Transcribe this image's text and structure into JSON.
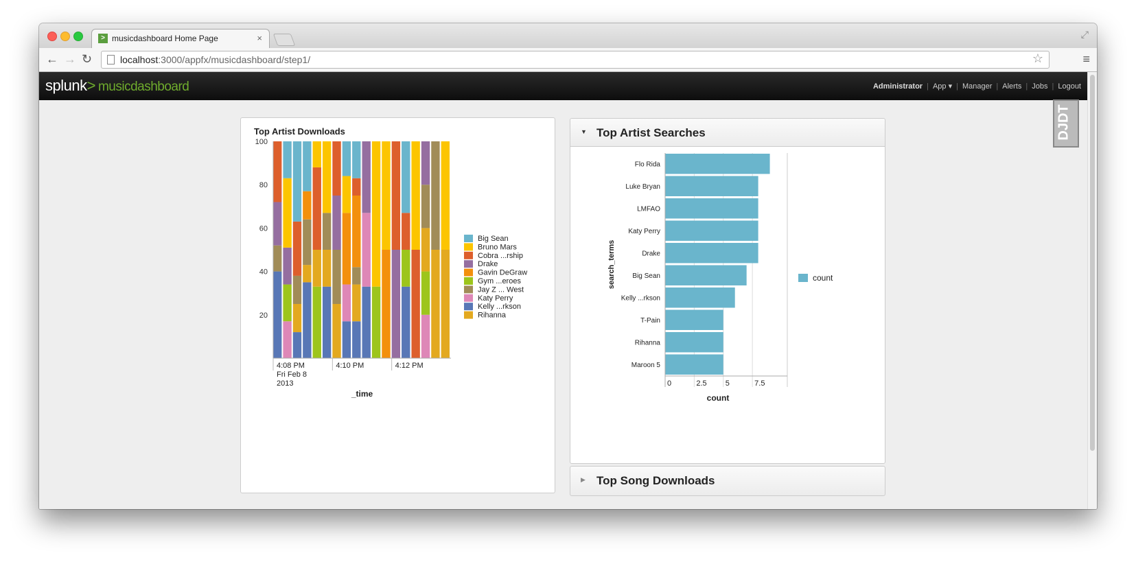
{
  "browser": {
    "tab_title": "musicdashboard Home Page",
    "tab_favicon": ">",
    "tab_close": "×",
    "url_host": "localhost",
    "url_path": ":3000/appfx/musicdashboard/step1/"
  },
  "header": {
    "logo": "splunk",
    "logo_gt": ">",
    "app_name": "musicdashboard",
    "nav": {
      "admin": "Administrator",
      "app": "App ▾",
      "manager": "Manager",
      "alerts": "Alerts",
      "jobs": "Jobs",
      "logout": "Logout"
    },
    "ddt": "DJDT"
  },
  "panels": {
    "downloads_title": "Top Artist Downloads",
    "searches_title": "Top Artist Searches",
    "song_downloads_title": "Top Song Downloads"
  },
  "chart_data": [
    {
      "type": "bar",
      "stacked": true,
      "title": "Top Artist Downloads",
      "xlabel": "_time",
      "ylabel": "",
      "ylim": [
        0,
        100
      ],
      "y_ticks": [
        "20",
        "40",
        "60",
        "80",
        "100"
      ],
      "x_tick_labels": [
        {
          "bar_index": 0,
          "lines": [
            "4:08 PM",
            "Fri Feb 8",
            "2013"
          ]
        },
        {
          "bar_index": 6,
          "lines": [
            "4:10 PM"
          ]
        },
        {
          "bar_index": 12,
          "lines": [
            "4:12 PM"
          ]
        }
      ],
      "series_order": [
        "Kelly ...rkson",
        "Katy Perry",
        "Gym ...eroes",
        "Rihanna",
        "Jay Z ... West",
        "Gavin DeGraw",
        "Drake",
        "Cobra ...rship",
        "Bruno Mars",
        "Big Sean"
      ],
      "colors": {
        "Big Sean": "#6ab5cc",
        "Bruno Mars": "#fcc500",
        "Cobra ...rship": "#dd5f2c",
        "Drake": "#956ea0",
        "Gavin DeGraw": "#f3900d",
        "Gym ...eroes": "#9dc51c",
        "Jay Z ... West": "#a18c58",
        "Katy Perry": "#de87b7",
        "Kelly ...rkson": "#5877b6",
        "Rihanna": "#e3a920"
      },
      "legend": [
        "Big Sean",
        "Bruno Mars",
        "Cobra ...rship",
        "Drake",
        "Gavin DeGraw",
        "Gym ...eroes",
        "Jay Z ... West",
        "Katy Perry",
        "Kelly ...rkson",
        "Rihanna"
      ],
      "legend_position": "right",
      "bars": [
        {
          "Kelly ...rkson": 40,
          "Jay Z ... West": 12,
          "Drake": 20,
          "Cobra ...rship": 28
        },
        {
          "Katy Perry": 17,
          "Gym ...eroes": 17,
          "Drake": 17,
          "Bruno Mars": 32,
          "Big Sean": 17
        },
        {
          "Rihanna": 13,
          "Kelly ...rkson": 12,
          "Jay Z ... West": 13,
          "Cobra ...rship": 25,
          "Big Sean": 37
        },
        {
          "Kelly ...rkson": 35,
          "Rihanna": 8,
          "Jay Z ... West": 21,
          "Gavin DeGraw": 13,
          "Big Sean": 23
        },
        {
          "Rihanna": 17,
          "Gym ...eroes": 33,
          "Cobra ...rship": 38,
          "Bruno Mars": 12
        },
        {
          "Rihanna": 17,
          "Kelly ...rkson": 33,
          "Jay Z ... West": 17,
          "Bruno Mars": 33
        },
        {
          "Rihanna": 25,
          "Jay Z ... West": 25,
          "Drake": 25,
          "Cobra ...rship": 25
        },
        {
          "Kelly ...rkson": 17,
          "Katy Perry": 17,
          "Gavin DeGraw": 33,
          "Bruno Mars": 17,
          "Big Sean": 16
        },
        {
          "Rihanna": 17,
          "Kelly ...rkson": 17,
          "Gavin DeGraw": 33,
          "Jay Z ... West": 8,
          "Cobra ...rship": 8,
          "Big Sean": 17
        },
        {
          "Kelly ...rkson": 33,
          "Katy Perry": 34,
          "Drake": 33
        },
        {
          "Gym ...eroes": 33,
          "Bruno Mars": 67
        },
        {
          "Gavin DeGraw": 50,
          "Bruno Mars": 50
        },
        {
          "Drake": 50,
          "Cobra ...rship": 50
        },
        {
          "Kelly ...rkson": 33,
          "Gym ...eroes": 17,
          "Cobra ...rship": 17,
          "Big Sean": 33
        },
        {
          "Cobra ...rship": 50,
          "Bruno Mars": 50
        },
        {
          "Rihanna": 20,
          "Katy Perry": 20,
          "Jay Z ... West": 20,
          "Gym ...eroes": 20,
          "Drake": 20
        },
        {
          "Rihanna": 50,
          "Jay Z ... West": 50
        },
        {
          "Rihanna": 50,
          "Bruno Mars": 50
        }
      ]
    },
    {
      "type": "bar",
      "orientation": "horizontal",
      "title": "",
      "xlabel": "count",
      "ylabel": "search_terms",
      "xlim": [
        0,
        10.5
      ],
      "x_ticks": [
        "0",
        "2.5",
        "5",
        "7.5"
      ],
      "categories": [
        "Flo Rida",
        "Luke Bryan",
        "LMFAO",
        "Katy Perry",
        "Drake",
        "Big Sean",
        "Kelly ...rkson",
        "T-Pain",
        "Rihanna",
        "Maroon 5"
      ],
      "values": [
        9,
        8,
        8,
        8,
        8,
        7,
        6,
        5,
        5,
        5
      ],
      "series": [
        {
          "name": "count",
          "values": [
            9,
            8,
            8,
            8,
            8,
            7,
            6,
            5,
            5,
            5
          ]
        }
      ],
      "color": "#6ab5cc",
      "legend_position": "right"
    }
  ]
}
